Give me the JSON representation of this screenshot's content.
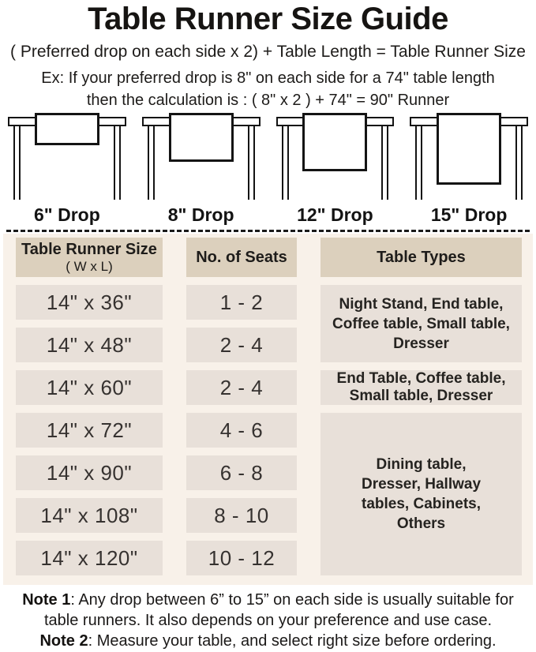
{
  "header": {
    "title": "Table Runner Size Guide",
    "formula": "( Preferred drop on each side x 2) + Table Length = Table Runner Size",
    "example_line1": "Ex: If your preferred drop is 8\" on each side for a 74\" table length",
    "example_line2": "then the calculation is : ( 8\" x 2 ) + 74\" = 90\" Runner"
  },
  "drops": {
    "labels": [
      "6\" Drop",
      "8\" Drop",
      "12\" Drop",
      "15\" Drop"
    ]
  },
  "size_table": {
    "col1_header": {
      "line1": "Table Runner Size",
      "line2": "( W x L)"
    },
    "col2_header": "No. of Seats",
    "col3_header": "Table Types",
    "rows": [
      {
        "size": "14\" x 36\"",
        "seats": "1 - 2"
      },
      {
        "size": "14\" x 48\"",
        "seats": "2 - 4"
      },
      {
        "size": "14\" x 60\"",
        "seats": "2 - 4"
      },
      {
        "size": "14\" x 72\"",
        "seats": "4 - 6"
      },
      {
        "size": "14\" x 90\"",
        "seats": "6 - 8"
      },
      {
        "size": "14\" x 108\"",
        "seats": "8 - 10"
      },
      {
        "size": "14\" x 120\"",
        "seats": "10 - 12"
      }
    ],
    "table_types": [
      {
        "text": "Night Stand, End table, Coffee table, Small table, Dresser"
      },
      {
        "text": "End Table, Coffee table, Small table, Dresser"
      },
      {
        "text": "Dining table, Dresser, Hallway tables, Cabinets, Others"
      }
    ]
  },
  "notes": [
    {
      "label": "Note 1",
      "text": ": Any drop between 6” to 15” on each side is usually suitable for table runners. It also depends on your preference and use case."
    },
    {
      "label": "Note 2",
      "text": ": Measure your table, and select right size before ordering."
    }
  ],
  "colors": {
    "panel_bg": "#f8f1e9",
    "header_cell_bg": "#dcd0bd",
    "body_cell_bg": "#e8e0d9",
    "line_art": "#141414"
  }
}
